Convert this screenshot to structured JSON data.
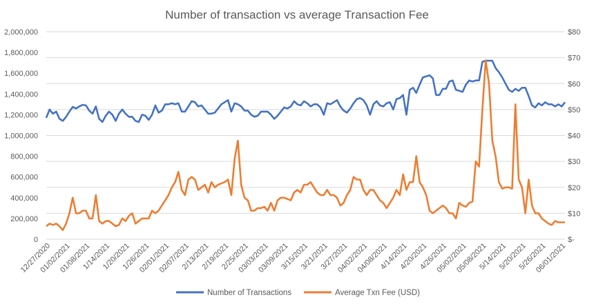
{
  "chart_data": {
    "type": "line",
    "title": "Number of transaction vs average Transaction Fee",
    "x_start": "12/27/2020",
    "x_tick_labels": [
      "12/27/2020",
      "01/02/2021",
      "01/08/2021",
      "1/14/2021",
      "1/20/2021",
      "1/26/2021",
      "02/01/2021",
      "02/07/2021",
      "2/13/2021",
      "2/19/2021",
      "2/25/2021",
      "03/03/2021",
      "03/09/2021",
      "3/15/2021",
      "3/21/2021",
      "3/27/2021",
      "04/02/2021",
      "04/08/2021",
      "4/14/2021",
      "4/20/2021",
      "4/26/2021",
      "05/02/2021",
      "05/08/2021",
      "5/14/2021",
      "5/20/2021",
      "5/26/2021",
      "06/01/2021"
    ],
    "x_tick_interval_days": 6,
    "y_left": {
      "range": [
        0,
        2000000
      ],
      "tick_labels": [
        "0",
        "200,000",
        "400,000",
        "600,000",
        "800,000",
        "1,000,000",
        "1,200,000",
        "1,400,000",
        "1,600,000",
        "1,800,000",
        "2,000,000"
      ]
    },
    "y_right": {
      "range": [
        0,
        80
      ],
      "tick_labels": [
        "$-",
        "$10",
        "$20",
        "$30",
        "$40",
        "$50",
        "$60",
        "$70",
        "$80"
      ]
    },
    "grid": true,
    "legend_position": "bottom",
    "series": [
      {
        "name": "Number of Transactions",
        "axis": "left",
        "color": "#4472c4",
        "values": [
          1170000,
          1250000,
          1210000,
          1230000,
          1160000,
          1140000,
          1180000,
          1230000,
          1275000,
          1260000,
          1280000,
          1295000,
          1290000,
          1240000,
          1210000,
          1280000,
          1160000,
          1130000,
          1190000,
          1230000,
          1200000,
          1140000,
          1210000,
          1250000,
          1210000,
          1180000,
          1180000,
          1140000,
          1130000,
          1200000,
          1190000,
          1150000,
          1200000,
          1290000,
          1220000,
          1240000,
          1300000,
          1300000,
          1310000,
          1300000,
          1310000,
          1230000,
          1230000,
          1280000,
          1330000,
          1320000,
          1280000,
          1290000,
          1250000,
          1210000,
          1210000,
          1220000,
          1260000,
          1300000,
          1320000,
          1340000,
          1230000,
          1310000,
          1300000,
          1280000,
          1240000,
          1240000,
          1200000,
          1180000,
          1190000,
          1230000,
          1230000,
          1230000,
          1200000,
          1160000,
          1190000,
          1230000,
          1270000,
          1260000,
          1280000,
          1330000,
          1300000,
          1290000,
          1330000,
          1310000,
          1280000,
          1300000,
          1300000,
          1270000,
          1200000,
          1310000,
          1300000,
          1320000,
          1340000,
          1280000,
          1240000,
          1220000,
          1260000,
          1310000,
          1350000,
          1360000,
          1340000,
          1290000,
          1200000,
          1300000,
          1330000,
          1290000,
          1280000,
          1310000,
          1320000,
          1250000,
          1350000,
          1360000,
          1390000,
          1200000,
          1440000,
          1460000,
          1410000,
          1490000,
          1560000,
          1570000,
          1580000,
          1550000,
          1390000,
          1390000,
          1450000,
          1450000,
          1520000,
          1530000,
          1440000,
          1430000,
          1420000,
          1490000,
          1530000,
          1520000,
          1530000,
          1530000,
          1710000,
          1720000,
          1720000,
          1720000,
          1650000,
          1610000,
          1560000,
          1500000,
          1440000,
          1420000,
          1450000,
          1430000,
          1460000,
          1460000,
          1380000,
          1290000,
          1270000,
          1310000,
          1290000,
          1320000,
          1300000,
          1300000,
          1280000,
          1300000,
          1280000,
          1320000
        ]
      },
      {
        "name": "Average Txn Fee (USD)",
        "axis": "right",
        "color": "#ed7d31",
        "values": [
          5,
          6,
          5.5,
          6,
          5,
          3.5,
          6,
          10,
          16,
          10,
          10,
          11,
          11,
          8,
          8,
          17,
          7,
          6,
          7,
          7,
          6,
          5,
          5.5,
          8,
          7,
          9,
          10,
          6,
          7,
          8,
          8,
          8,
          11,
          10,
          11,
          13,
          15,
          17,
          20,
          22,
          26,
          19,
          17,
          23,
          24,
          23,
          19,
          20,
          21,
          18,
          22,
          20,
          21,
          21.5,
          22,
          23,
          17,
          31,
          38,
          21,
          16,
          15,
          11,
          11,
          12,
          12,
          12.5,
          11,
          14,
          11,
          15,
          16,
          16,
          15.5,
          15,
          18,
          19,
          18,
          21,
          21,
          22,
          20,
          18,
          17,
          17,
          19,
          17,
          17,
          16,
          13,
          14,
          17,
          19,
          24,
          23,
          23,
          19,
          17,
          19,
          19,
          17,
          15,
          14,
          12,
          14,
          16,
          19,
          17,
          25,
          19,
          22,
          22,
          32,
          22,
          20,
          17,
          11,
          10,
          11,
          12,
          13,
          12,
          10,
          10,
          8,
          14,
          13,
          12.5,
          14,
          14.5,
          30,
          28,
          50,
          69,
          60,
          38,
          32,
          22,
          19.5,
          20,
          20,
          19.5,
          52,
          23,
          20,
          10,
          23,
          13,
          10,
          10,
          8,
          7,
          6,
          5.5,
          7,
          6.5,
          6.5,
          6.5
        ]
      }
    ]
  }
}
